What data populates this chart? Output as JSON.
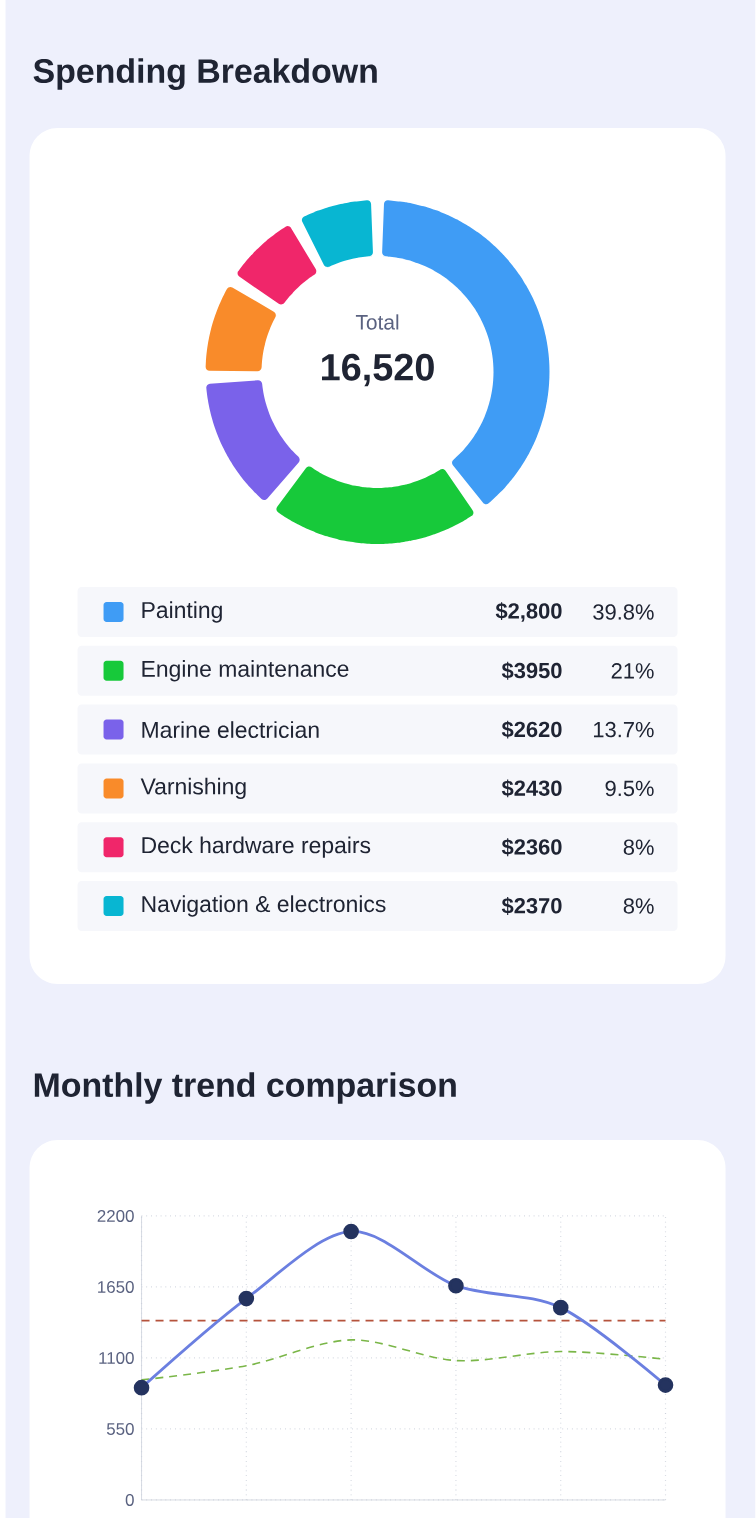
{
  "chart_data": [
    {
      "type": "donut",
      "title": "Spending Breakdown",
      "categories": [
        "Painting",
        "Engine maintenance",
        "Marine electrician",
        "Varnishing",
        "Deck hardware repairs",
        "Navigation & electronics"
      ],
      "values": [
        39.8,
        21,
        13.7,
        9.5,
        8,
        8
      ],
      "colors": [
        "#3f9cf5",
        "#17c93a",
        "#7a62ea",
        "#f98b2a",
        "#f0266a",
        "#08b6d2"
      ],
      "value_labels": [
        "39.8%",
        "21%",
        "13.7%",
        "9.5%",
        "8%",
        "8%"
      ],
      "legend": "bottom",
      "annotations": [
        "Total",
        "16,520",
        {
          "text": "$2,800",
          "x": "Painting"
        },
        {
          "text": "$3950",
          "x": "Engine maintenance"
        },
        {
          "text": "$2620",
          "x": "Marine electrician"
        },
        {
          "text": "$2430",
          "x": "Varnishing"
        },
        {
          "text": "$2360",
          "x": "Deck hardware repairs"
        },
        {
          "text": "$2370",
          "x": "Navigation & electronics"
        }
      ]
    },
    {
      "type": "line",
      "title": "Monthly trend comparison",
      "categories": [
        null,
        null,
        null,
        null,
        null,
        null
      ],
      "series": [
        {
          "color": "#6b7fe0",
          "values": [
            870,
            1560,
            2080,
            1660,
            1490,
            890
          ],
          "marker": "circle",
          "line_style": "solid"
        },
        {
          "color": "#7ab648",
          "values": [
            930,
            1040,
            1240,
            1080,
            1150,
            1090
          ],
          "marker": "none",
          "line_style": "dashed"
        }
      ],
      "ylim": [
        0,
        2200
      ],
      "yticks": [
        0,
        550,
        1100,
        1650,
        2200
      ],
      "grid": true,
      "tick_labels": "y",
      "ref_lines": [
        {
          "axis": "y",
          "value": 1390,
          "color": "#b5533c",
          "line_style": "dashed"
        }
      ]
    }
  ]
}
